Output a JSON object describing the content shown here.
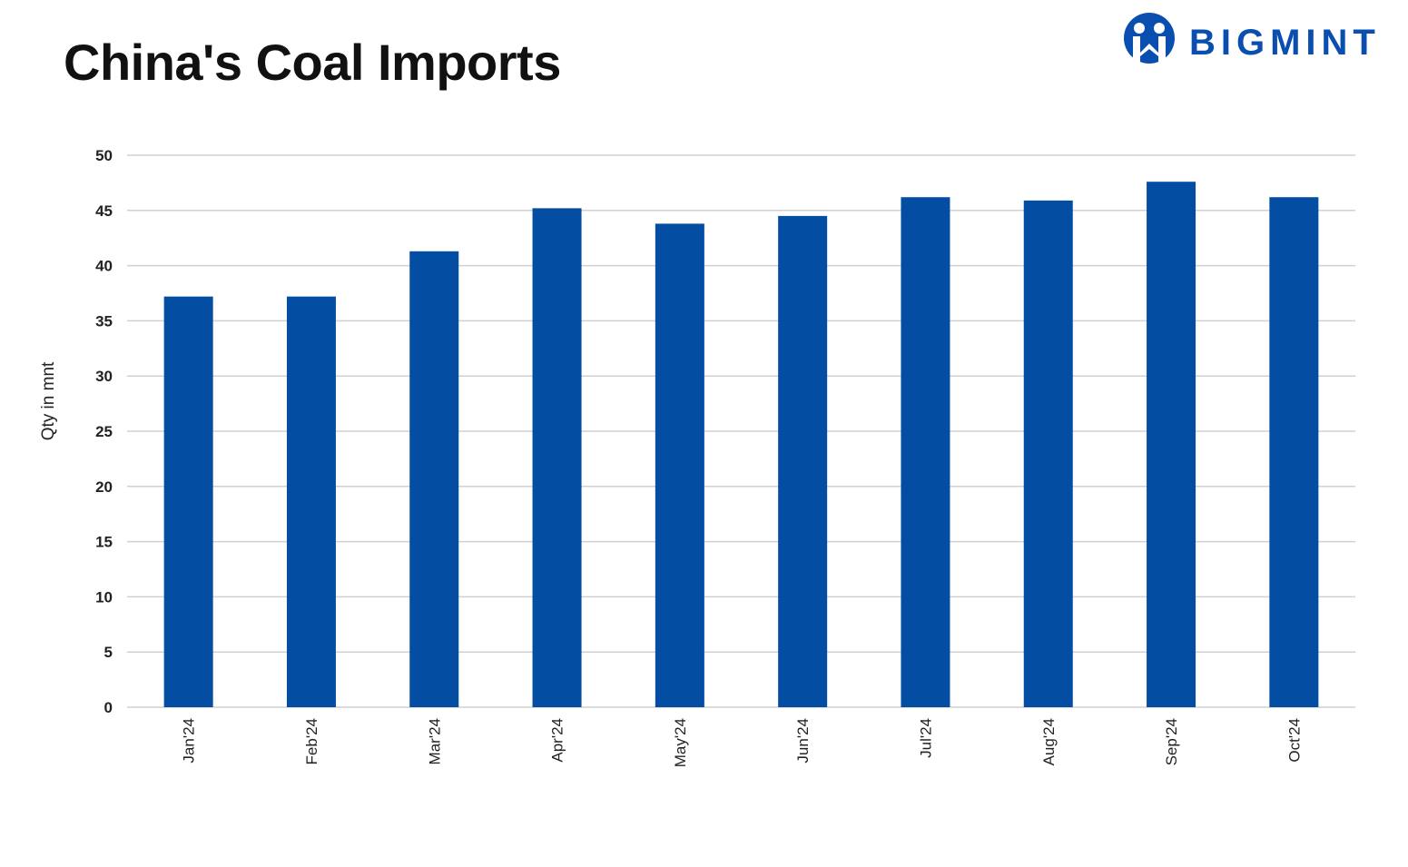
{
  "title": "China's Coal Imports",
  "logo": {
    "text": "BIGMINT",
    "color": "#0a4fb0"
  },
  "chart_data": {
    "type": "bar",
    "title": "China's Coal Imports",
    "xlabel": "",
    "ylabel": "Qty in mnt",
    "ylim": [
      0,
      50
    ],
    "yticks": [
      0,
      5,
      10,
      15,
      20,
      25,
      30,
      35,
      40,
      45,
      50
    ],
    "grid": true,
    "bar_color": "#034ea2",
    "categories": [
      "Jan'24",
      "Feb'24",
      "Mar'24",
      "Apr'24",
      "May'24",
      "Jun'24",
      "Jul'24",
      "Aug'24",
      "Sep'24",
      "Oct'24"
    ],
    "values": [
      37.2,
      37.2,
      41.3,
      45.2,
      43.8,
      44.5,
      46.2,
      45.9,
      47.6,
      46.2
    ]
  }
}
